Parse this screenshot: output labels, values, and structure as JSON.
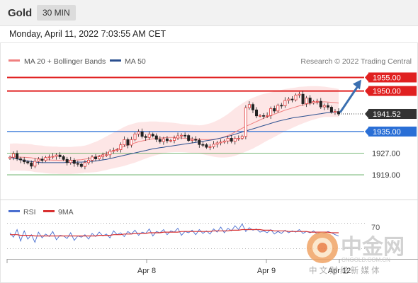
{
  "header": {
    "title": "Gold",
    "timeframe": "30 MIN",
    "datetime": "Monday, April 11, 2022 7:03:55 AM CET"
  },
  "watermark": {
    "chinese": "中金网",
    "domain": "CNGOLD.COM.CN",
    "subtitle": "中 文 财 经 新 媒 体"
  },
  "colors": {
    "resistance": "#e02020",
    "support": "#2a6fd6",
    "price": "#333333",
    "target": "#3a6fb0",
    "ma20": "#f08080",
    "ma50": "#2a4f8f",
    "band": "#fde2e2",
    "bull": "#e23b3b",
    "bear": "#222222",
    "rsi": "#4a6fd0",
    "rsi_ma": "#d83030",
    "green_level": "#4aa04a"
  },
  "chart_data": [
    {
      "type": "candlestick",
      "title": "",
      "legend": [
        {
          "name": "MA 20 + Bollinger Bands",
          "color": "#f08080"
        },
        {
          "name": "MA 50",
          "color": "#2a4f8f"
        }
      ],
      "copyright": "Research © 2022 Trading Central",
      "ylim": [
        1913,
        1958
      ],
      "x_ticks": [
        "Apr 8",
        "Apr 9",
        "Apr 12"
      ],
      "levels": [
        {
          "value": 1955.0,
          "label": "1955.00",
          "kind": "resistance"
        },
        {
          "value": 1950.0,
          "label": "1950.00",
          "kind": "resistance"
        },
        {
          "value": 1941.52,
          "label": "1941.52",
          "kind": "price"
        },
        {
          "value": 1935.0,
          "label": "1935.00",
          "kind": "support"
        },
        {
          "value": 1927.0,
          "label": "1927.00",
          "kind": "green"
        },
        {
          "value": 1919.0,
          "label": "1919.00",
          "kind": "green"
        }
      ],
      "close": [
        1925.5,
        1926.8,
        1924.9,
        1924.5,
        1923.8,
        1923.4,
        1922.2,
        1924.0,
        1924.8,
        1924.3,
        1925.4,
        1925.6,
        1925.8,
        1926.3,
        1925.7,
        1924.7,
        1923.5,
        1924.4,
        1923.2,
        1922.9,
        1922.1,
        1923.5,
        1924.4,
        1925.6,
        1924.9,
        1925.7,
        1926.3,
        1926.4,
        1927.7,
        1928.0,
        1928.3,
        1930.1,
        1932.0,
        1930.0,
        1932.0,
        1934.1,
        1934.9,
        1933.2,
        1932.8,
        1934.0,
        1933.4,
        1932.1,
        1931.3,
        1932.3,
        1931.6,
        1931.7,
        1932.6,
        1933.4,
        1933.6,
        1933.5,
        1931.7,
        1932.1,
        1931.8,
        1930.2,
        1930.1,
        1929.2,
        1929.4,
        1930.3,
        1930.8,
        1931.1,
        1931.5,
        1932.5,
        1931.4,
        1932.5,
        1932.5,
        1933.2,
        1943.8,
        1945.0,
        1943.0,
        1940.8,
        1940.9,
        1940.7,
        1940.9,
        1943.5,
        1942.6,
        1944.7,
        1944.5,
        1946.5,
        1947.0,
        1946.7,
        1948.5,
        1948.8,
        1945.3,
        1947.4,
        1945.6,
        1946.1,
        1946.2,
        1944.1,
        1944.6,
        1944.0,
        1942.2,
        1942.4,
        1941.5
      ],
      "ma20": [
        1925.5,
        1925.6,
        1925.6,
        1925.5,
        1925.5,
        1925.4,
        1925.3,
        1925.0,
        1924.9,
        1924.8,
        1924.6,
        1924.5,
        1924.4,
        1924.4,
        1924.3,
        1924.3,
        1924.3,
        1924.3,
        1924.4,
        1924.5,
        1924.6,
        1924.8,
        1925.0,
        1925.3,
        1925.6,
        1926.0,
        1926.5,
        1927.0,
        1927.5,
        1928.0,
        1928.5,
        1929.0,
        1929.5,
        1930.0,
        1930.4,
        1930.8,
        1931.2,
        1931.5,
        1931.8,
        1932.1,
        1932.3,
        1932.5,
        1932.6,
        1932.7,
        1932.8,
        1932.8,
        1932.8,
        1932.7,
        1932.6,
        1932.5,
        1932.4,
        1932.3,
        1932.2,
        1932.1,
        1932.0,
        1932.0,
        1932.0,
        1932.1,
        1932.3,
        1932.6,
        1933.0,
        1933.5,
        1934.1,
        1934.8,
        1935.5,
        1936.2,
        1936.9,
        1937.5,
        1938.1,
        1938.7,
        1939.3,
        1939.9,
        1940.4,
        1940.9,
        1941.4,
        1941.9,
        1942.4,
        1942.9,
        1943.3,
        1943.7,
        1944.1,
        1944.5,
        1944.8,
        1945.1,
        1945.4,
        1945.6,
        1945.8,
        1945.9,
        1946.0,
        1945.9,
        1945.8,
        1945.7,
        1945.5
      ],
      "band": [
        5.0,
        5.0,
        5.0,
        5.0,
        5.0,
        5.0,
        5.0,
        5.0,
        5.0,
        5.0,
        5.0,
        5.0,
        5.0,
        5.0,
        5.0,
        5.0,
        5.0,
        5.0,
        5.0,
        5.0,
        5.0,
        5.0,
        5.2,
        5.4,
        5.6,
        5.8,
        6.0,
        6.2,
        6.4,
        6.6,
        6.8,
        7.0,
        7.2,
        7.3,
        7.3,
        7.3,
        7.2,
        7.0,
        6.8,
        6.6,
        6.4,
        6.2,
        6.0,
        5.8,
        5.6,
        5.5,
        5.4,
        5.3,
        5.2,
        5.2,
        5.2,
        5.2,
        5.2,
        5.2,
        5.4,
        5.7,
        6.0,
        6.4,
        6.8,
        7.2,
        7.6,
        8.0,
        8.4,
        8.8,
        9.0,
        9.2,
        9.3,
        9.4,
        9.4,
        9.3,
        9.2,
        9.0,
        8.8,
        8.6,
        8.4,
        8.2,
        8.0,
        7.8,
        7.6,
        7.4,
        7.2,
        7.0,
        6.8,
        6.6,
        6.4,
        6.2,
        6.0,
        5.8,
        5.6,
        5.5,
        5.4,
        5.3,
        5.2
      ],
      "ma50": [
        1925.5,
        1925.2,
        1924.9,
        1924.6,
        1924.3,
        1924.1,
        1923.9,
        1923.7,
        1923.6,
        1923.5,
        1923.5,
        1923.5,
        1923.5,
        1923.5,
        1923.5,
        1923.5,
        1923.6,
        1923.6,
        1923.6,
        1923.7,
        1923.7,
        1923.8,
        1923.9,
        1924.0,
        1924.1,
        1924.3,
        1924.5,
        1924.7,
        1925.0,
        1925.3,
        1925.6,
        1925.9,
        1926.2,
        1926.5,
        1926.8,
        1927.1,
        1927.4,
        1927.7,
        1928.0,
        1928.3,
        1928.6,
        1928.8,
        1929.0,
        1929.2,
        1929.4,
        1929.6,
        1929.8,
        1930.0,
        1930.2,
        1930.4,
        1930.6,
        1930.8,
        1931.0,
        1931.2,
        1931.4,
        1931.6,
        1931.8,
        1932.0,
        1932.3,
        1932.6,
        1932.9,
        1933.2,
        1933.6,
        1934.0,
        1934.4,
        1934.8,
        1935.2,
        1935.6,
        1936.0,
        1936.4,
        1936.8,
        1937.2,
        1937.6,
        1938.0,
        1938.4,
        1938.8,
        1939.1,
        1939.4,
        1939.7,
        1940.0,
        1940.2,
        1940.4,
        1940.6,
        1940.8,
        1941.0,
        1941.2,
        1941.4,
        1941.6,
        1941.8,
        1942.0,
        1942.1,
        1942.2,
        1942.3
      ]
    },
    {
      "type": "line",
      "title": "",
      "legend": [
        {
          "name": "RSI",
          "color": "#4a6fd0"
        },
        {
          "name": "9MA",
          "color": "#d83030"
        }
      ],
      "ylim": [
        25,
        75
      ],
      "reference_lines": [
        70,
        30
      ],
      "ref_label": "70",
      "rsi": [
        55,
        48,
        60,
        42,
        58,
        45,
        52,
        40,
        56,
        47,
        53,
        49,
        57,
        44,
        51,
        50,
        46,
        55,
        43,
        50,
        48,
        52,
        45,
        54,
        49,
        56,
        50,
        53,
        47,
        58,
        52,
        55,
        49,
        57,
        53,
        59,
        51,
        56,
        54,
        61,
        50,
        57,
        55,
        60,
        52,
        58,
        56,
        62,
        51,
        57,
        55,
        59,
        52,
        60,
        54,
        58,
        53,
        61,
        56,
        64,
        55,
        62,
        58,
        66,
        60,
        69,
        57,
        63,
        59,
        61,
        56,
        58,
        55,
        60,
        53,
        57,
        54,
        59,
        55,
        58,
        56,
        60,
        54,
        57,
        55,
        58,
        53,
        56,
        54,
        57,
        55,
        52,
        50
      ],
      "rsi_ma": [
        52,
        52,
        52,
        51,
        51,
        51,
        51,
        50,
        50,
        50,
        50,
        50,
        50,
        50,
        50,
        50,
        50,
        50,
        50,
        50,
        50,
        50,
        50,
        50,
        50,
        51,
        51,
        51,
        51,
        52,
        52,
        52,
        53,
        53,
        53,
        54,
        54,
        54,
        54,
        55,
        55,
        55,
        55,
        56,
        56,
        56,
        56,
        56,
        57,
        57,
        57,
        57,
        57,
        57,
        57,
        57,
        57,
        58,
        58,
        58,
        58,
        58,
        59,
        59,
        59,
        60,
        60,
        60,
        60,
        60,
        60,
        59,
        59,
        59,
        58,
        58,
        58,
        58,
        57,
        57,
        57,
        57,
        57,
        57,
        56,
        56,
        56,
        56,
        56,
        56,
        55,
        55,
        55
      ]
    }
  ]
}
